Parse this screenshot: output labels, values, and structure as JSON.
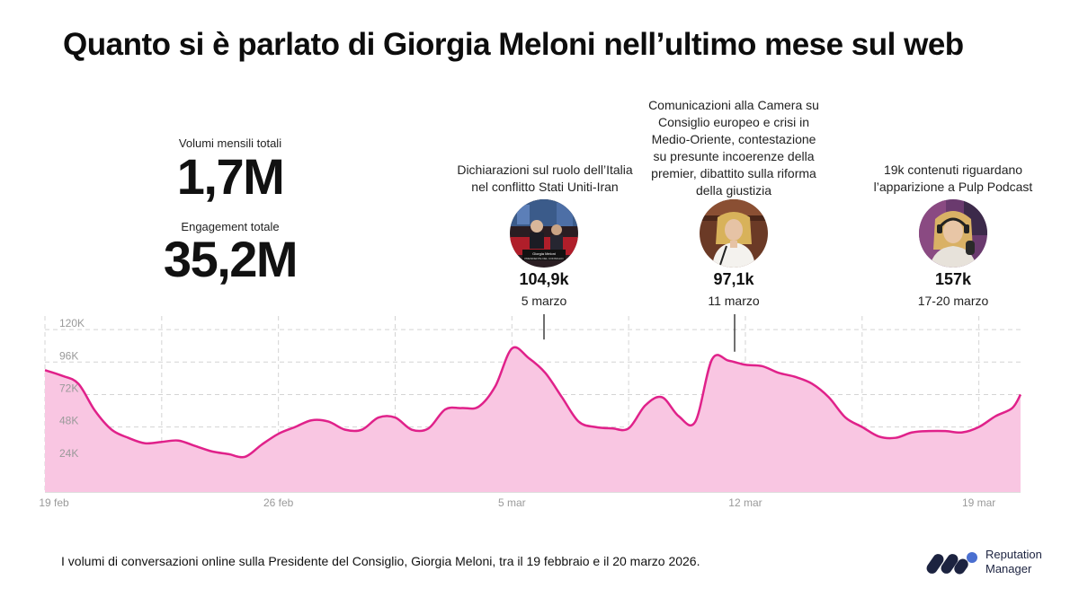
{
  "title": "Quanto si è parlato di Giorgia Meloni nell’ultimo mese sul web",
  "stats": {
    "volume_label": "Volumi mensili totali",
    "volume_value": "1,7M",
    "engagement_label": "Engagement totale",
    "engagement_value": "35,2M"
  },
  "events": [
    {
      "description": [
        "Dichiarazioni sul ruolo dell’Italia",
        "nel conflitto Stati Uniti-Iran"
      ],
      "value": "104,9k",
      "date": "5 marzo",
      "photo_icon": "press-conference-photo",
      "photo_caption": [
        "Giorgia Meloni",
        "PRESIDENTE DEL CONSIGLIO"
      ]
    },
    {
      "description": [
        "Comunicazioni alla Camera su",
        "Consiglio europeo e crisi in",
        "Medio-Oriente, contestazione",
        "su presunte incoerenze della",
        "premier, dibattito sulla riforma",
        "della giustizia"
      ],
      "value": "97,1k",
      "date": "11 marzo",
      "photo_icon": "parliament-speech-photo"
    },
    {
      "description": [
        "19k contenuti riguardano",
        "l’apparizione a Pulp Podcast"
      ],
      "value": "157k",
      "date": "17-20 marzo",
      "photo_icon": "podcast-photo"
    }
  ],
  "chart_data": {
    "type": "area",
    "x_ticks": [
      "19 feb",
      "26 feb",
      "5 mar",
      "12 mar",
      "19 mar"
    ],
    "y_ticks": [
      "24K",
      "48K",
      "72K",
      "96K",
      "120K"
    ],
    "ylim": [
      0,
      130000
    ],
    "xlim": [
      0,
      29.25
    ],
    "grid": true,
    "color": "#e0218a",
    "fill": "#f9c6e2",
    "x_dates": [
      "19 feb",
      "20 feb",
      "21 feb",
      "22 feb",
      "23 feb",
      "24 feb",
      "25 feb",
      "26 feb",
      "27 feb",
      "28 feb",
      "1 mar",
      "2 mar",
      "3 mar",
      "4 mar",
      "5 mar",
      "6 mar",
      "7 mar",
      "8 mar",
      "9 mar",
      "10 mar",
      "11 mar",
      "12 mar",
      "13 mar",
      "14 mar",
      "15 mar",
      "16 mar",
      "17 mar",
      "18 mar",
      "19 mar",
      "20 mar"
    ],
    "series": [
      {
        "x": [
          0,
          0.5,
          1,
          1.5,
          2,
          2.5,
          3,
          3.5,
          4,
          4.5,
          5,
          5.5,
          6,
          6.5,
          7,
          7.5,
          8,
          8.5,
          9,
          9.5,
          10,
          10.5,
          11,
          11.5,
          12,
          12.5,
          13,
          13.5,
          14,
          14.5,
          15,
          15.5,
          16,
          16.5,
          17,
          17.5,
          18,
          18.5,
          19,
          19.5,
          20,
          20.5,
          21,
          21.5,
          22,
          22.5,
          23,
          23.5,
          24,
          24.5,
          25,
          25.5,
          26,
          26.5,
          27,
          27.5,
          28,
          28.5,
          29,
          29.25
        ],
        "y": [
          90000,
          86000,
          80000,
          60000,
          46000,
          40000,
          36000,
          37000,
          38000,
          34000,
          30000,
          28000,
          26000,
          35000,
          43000,
          48000,
          53000,
          52000,
          46000,
          46000,
          55000,
          55000,
          46000,
          47000,
          61000,
          62000,
          63000,
          78000,
          106000,
          99000,
          88000,
          70000,
          52000,
          48000,
          47000,
          47000,
          64000,
          70000,
          56000,
          52000,
          98000,
          97000,
          94000,
          93000,
          88000,
          85000,
          80000,
          70000,
          55000,
          48000,
          41000,
          40000,
          44000,
          45000,
          45000,
          44000,
          48000,
          56000,
          62000,
          72000
        ]
      }
    ]
  },
  "footer": "I volumi di conversazioni online sulla Presidente del Consiglio, Giorgia Meloni, tra il 19 febbraio e il 20 marzo 2026.",
  "brand": {
    "line1": "Reputation",
    "line2": "Manager",
    "logo_icon": "reputation-manager-logo"
  }
}
